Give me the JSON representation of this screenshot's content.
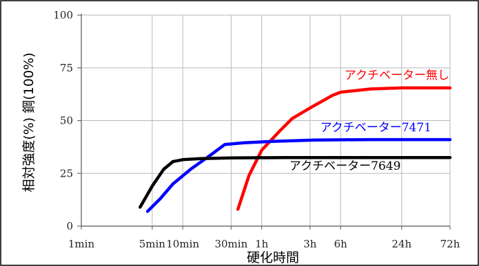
{
  "chart_data": {
    "type": "line",
    "xlabel": "硬化時間",
    "ylabel": "相対強度(%)  鋼(100%)",
    "x_scale": "log",
    "x_unit": "min",
    "xlim": [
      1,
      4320
    ],
    "ylim": [
      0,
      100
    ],
    "grid": true,
    "legend": "inline labels",
    "x_ticks": [
      {
        "value": 1,
        "label": "1min"
      },
      {
        "value": 5,
        "label": "5min"
      },
      {
        "value": 10,
        "label": "10min"
      },
      {
        "value": 30,
        "label": "30min"
      },
      {
        "value": 60,
        "label": "1h"
      },
      {
        "value": 180,
        "label": "3h"
      },
      {
        "value": 360,
        "label": "6h"
      },
      {
        "value": 1440,
        "label": "24h"
      },
      {
        "value": 4320,
        "label": "72h"
      }
    ],
    "y_ticks": [
      {
        "value": 0,
        "label": "0"
      },
      {
        "value": 25,
        "label": "25"
      },
      {
        "value": 50,
        "label": "50"
      },
      {
        "value": 75,
        "label": "75"
      },
      {
        "value": 100,
        "label": "100"
      }
    ],
    "series": [
      {
        "name": "アクチベーター無し",
        "color": "#ff0000",
        "x": [
          35,
          45,
          60,
          90,
          120,
          180,
          300,
          360,
          720,
          1440,
          4320
        ],
        "y": [
          8,
          24,
          36,
          45,
          51,
          56,
          62,
          63.5,
          65,
          65.5,
          65.5
        ]
      },
      {
        "name": "アクチベーター7471",
        "color": "#0000ff",
        "x": [
          4.5,
          6,
          8,
          12,
          18,
          26,
          40,
          80,
          200,
          700,
          4320
        ],
        "y": [
          7,
          13,
          20,
          27,
          33,
          38.7,
          39.5,
          40.2,
          40.8,
          41,
          41
        ]
      },
      {
        "name": "アクチベーター7649",
        "color": "#000000",
        "x": [
          3.8,
          5,
          6.5,
          8,
          10,
          15,
          30,
          100,
          500,
          4320
        ],
        "y": [
          9,
          19,
          27,
          30.6,
          31.5,
          32,
          32.3,
          32.5,
          32.5,
          32.5
        ]
      }
    ]
  }
}
